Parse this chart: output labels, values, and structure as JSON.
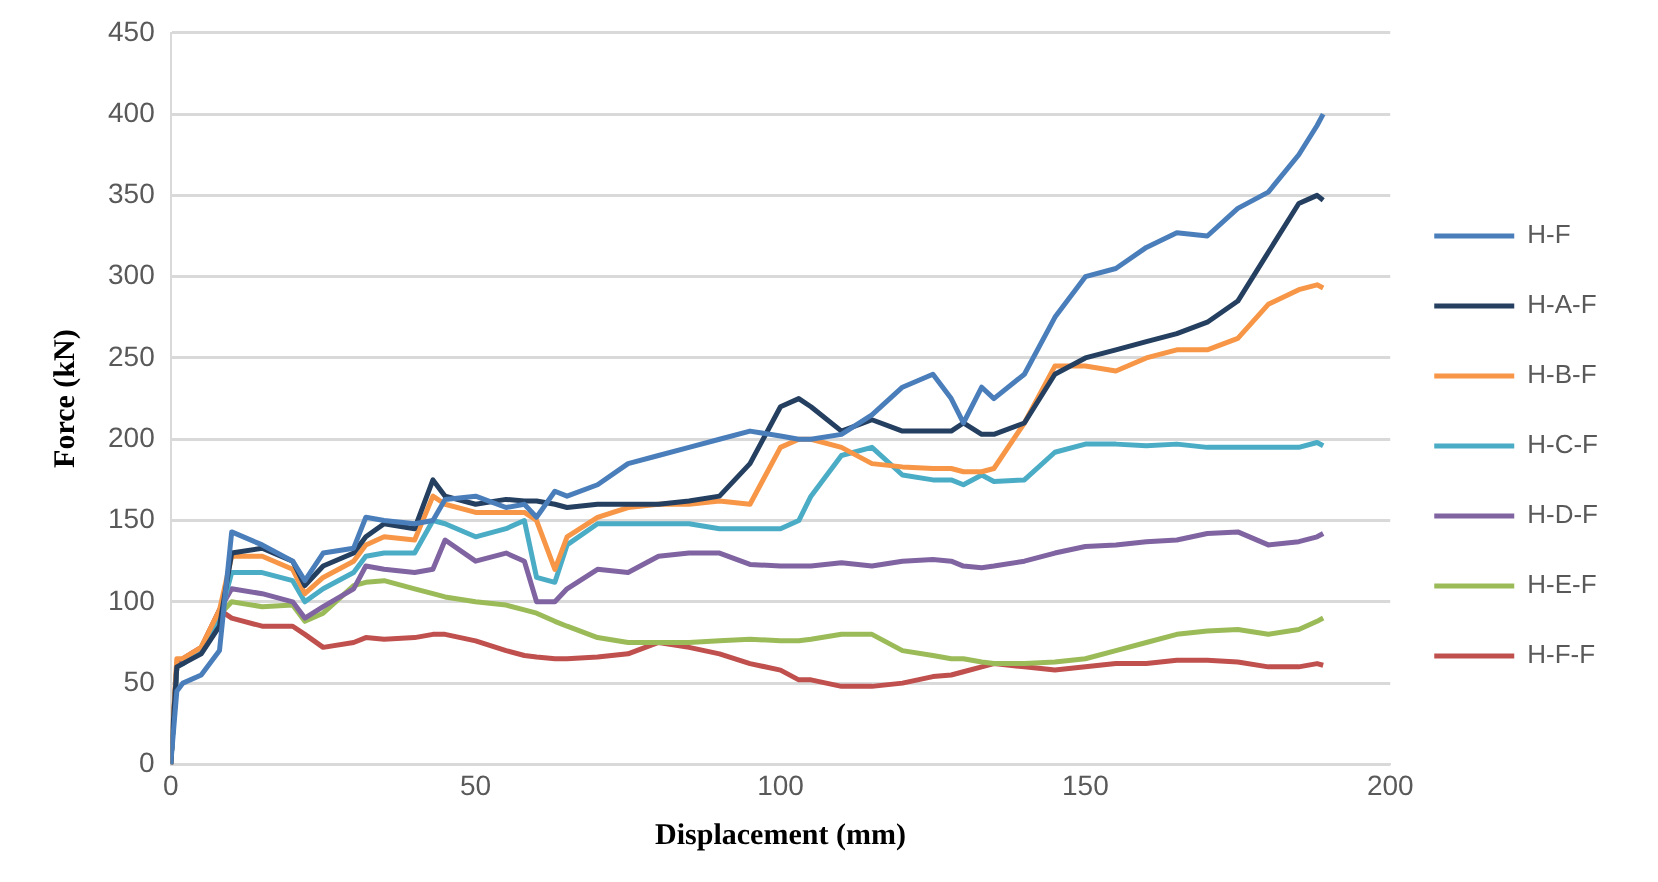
{
  "chart_data": {
    "type": "line",
    "xlabel": "Displacement (mm)",
    "ylabel": "Force (kN)",
    "x": [
      0,
      1,
      2,
      5,
      8,
      10,
      15,
      20,
      22,
      25,
      30,
      32,
      35,
      40,
      43,
      45,
      50,
      55,
      58,
      60,
      63,
      65,
      70,
      75,
      80,
      85,
      90,
      95,
      100,
      103,
      105,
      110,
      115,
      120,
      125,
      128,
      130,
      133,
      135,
      140,
      145,
      150,
      155,
      160,
      165,
      170,
      175,
      180,
      185,
      188,
      189
    ],
    "series": [
      {
        "name": "H-F",
        "color": "#4a7ebb",
        "values": [
          0,
          45,
          50,
          55,
          70,
          143,
          135,
          125,
          113,
          130,
          133,
          152,
          150,
          148,
          150,
          163,
          165,
          158,
          160,
          152,
          168,
          165,
          172,
          185,
          190,
          195,
          200,
          205,
          202,
          200,
          200,
          203,
          215,
          232,
          240,
          225,
          210,
          232,
          225,
          240,
          275,
          300,
          305,
          318,
          327,
          325,
          342,
          352,
          375,
          393,
          400
        ]
      },
      {
        "name": "H-A-F",
        "color": "#243f60",
        "values": [
          0,
          60,
          62,
          68,
          85,
          130,
          133,
          125,
          110,
          122,
          130,
          140,
          148,
          145,
          175,
          165,
          160,
          163,
          162,
          162,
          160,
          158,
          160,
          160,
          160,
          162,
          165,
          185,
          220,
          225,
          220,
          205,
          212,
          205,
          205,
          205,
          210,
          203,
          203,
          210,
          240,
          250,
          255,
          260,
          265,
          272,
          285,
          315,
          345,
          350,
          347
        ]
      },
      {
        "name": "H-B-F",
        "color": "#f79646",
        "values": [
          0,
          65,
          65,
          72,
          95,
          128,
          128,
          120,
          105,
          115,
          125,
          135,
          140,
          138,
          165,
          160,
          155,
          155,
          155,
          150,
          120,
          140,
          152,
          158,
          160,
          160,
          162,
          160,
          195,
          200,
          200,
          195,
          185,
          183,
          182,
          182,
          180,
          180,
          182,
          210,
          245,
          245,
          242,
          250,
          255,
          255,
          262,
          283,
          292,
          295,
          293
        ]
      },
      {
        "name": "H-C-F",
        "color": "#4bacc6",
        "values": [
          0,
          60,
          62,
          70,
          90,
          118,
          118,
          113,
          100,
          108,
          118,
          128,
          130,
          130,
          150,
          148,
          140,
          145,
          150,
          115,
          112,
          135,
          148,
          148,
          148,
          148,
          145,
          145,
          145,
          150,
          165,
          190,
          195,
          178,
          175,
          175,
          172,
          178,
          174,
          175,
          192,
          197,
          197,
          196,
          197,
          195,
          195,
          195,
          195,
          198,
          196
        ]
      },
      {
        "name": "H-D-F",
        "color": "#8064a2",
        "values": [
          0,
          60,
          62,
          70,
          95,
          108,
          105,
          100,
          90,
          97,
          108,
          122,
          120,
          118,
          120,
          138,
          125,
          130,
          125,
          100,
          100,
          108,
          120,
          118,
          128,
          130,
          130,
          123,
          122,
          122,
          122,
          124,
          122,
          125,
          126,
          125,
          122,
          121,
          122,
          125,
          130,
          134,
          135,
          137,
          138,
          142,
          143,
          135,
          137,
          140,
          142
        ]
      },
      {
        "name": "H-E-F",
        "color": "#9bbb59",
        "values": [
          0,
          60,
          62,
          72,
          92,
          100,
          97,
          98,
          88,
          93,
          110,
          112,
          113,
          108,
          105,
          103,
          100,
          98,
          95,
          93,
          88,
          85,
          78,
          75,
          75,
          75,
          76,
          77,
          76,
          76,
          77,
          80,
          80,
          70,
          67,
          65,
          65,
          63,
          62,
          62,
          63,
          65,
          70,
          75,
          80,
          82,
          83,
          80,
          83,
          88,
          90
        ]
      },
      {
        "name": "H-F-F",
        "color": "#c0504d",
        "values": [
          0,
          62,
          65,
          72,
          95,
          90,
          85,
          85,
          80,
          72,
          75,
          78,
          77,
          78,
          80,
          80,
          76,
          70,
          67,
          66,
          65,
          65,
          66,
          68,
          75,
          72,
          68,
          62,
          58,
          52,
          52,
          48,
          48,
          50,
          54,
          55,
          57,
          60,
          62,
          60,
          58,
          60,
          62,
          62,
          64,
          64,
          63,
          60,
          60,
          62,
          61
        ]
      }
    ],
    "xlim": [
      0,
      200
    ],
    "xticks": [
      0,
      50,
      100,
      150,
      200
    ],
    "ylim": [
      0,
      450
    ],
    "yticks": [
      0,
      50,
      100,
      150,
      200,
      250,
      300,
      350,
      400,
      450
    ],
    "grid": "y",
    "legend": "right",
    "marker": "none",
    "line_style": "solid"
  }
}
